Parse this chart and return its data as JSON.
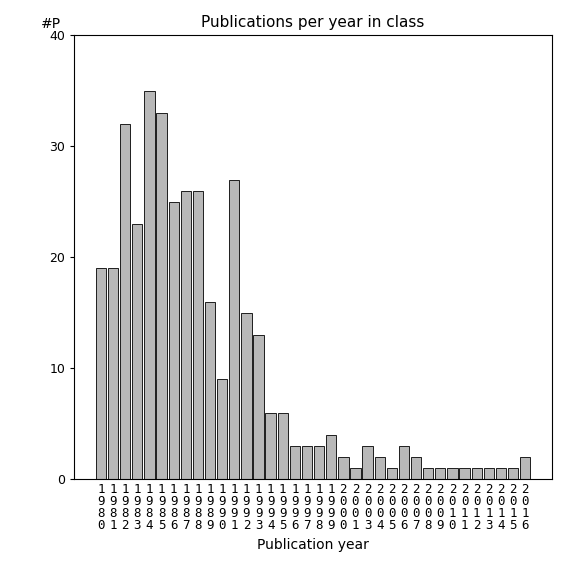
{
  "title": "Publications per year in class",
  "xlabel": "Publication year",
  "ylabel": "#P",
  "years": [
    "1980",
    "1981",
    "1982",
    "1983",
    "1984",
    "1985",
    "1986",
    "1987",
    "1988",
    "1989",
    "1990",
    "1991",
    "1992",
    "1993",
    "1994",
    "1995",
    "1996",
    "1997",
    "1998",
    "1999",
    "2000",
    "2001",
    "2003",
    "2004",
    "2005",
    "2006",
    "2007",
    "2008",
    "2009",
    "2010",
    "2011",
    "2012",
    "2013",
    "2014",
    "2015",
    "2016"
  ],
  "values": [
    19,
    19,
    32,
    23,
    35,
    33,
    25,
    26,
    26,
    16,
    9,
    27,
    15,
    13,
    6,
    6,
    3,
    3,
    3,
    4,
    2,
    1,
    3,
    2,
    1,
    3,
    2,
    1,
    1,
    1,
    1,
    1,
    1,
    1,
    1,
    2
  ],
  "bar_color": "#b8b8b8",
  "bar_edge_color": "#000000",
  "ylim": [
    0,
    40
  ],
  "yticks": [
    0,
    10,
    20,
    30,
    40
  ],
  "background_color": "#ffffff",
  "title_fontsize": 11,
  "xlabel_fontsize": 10,
  "ylabel_fontsize": 10,
  "tick_fontsize": 9
}
